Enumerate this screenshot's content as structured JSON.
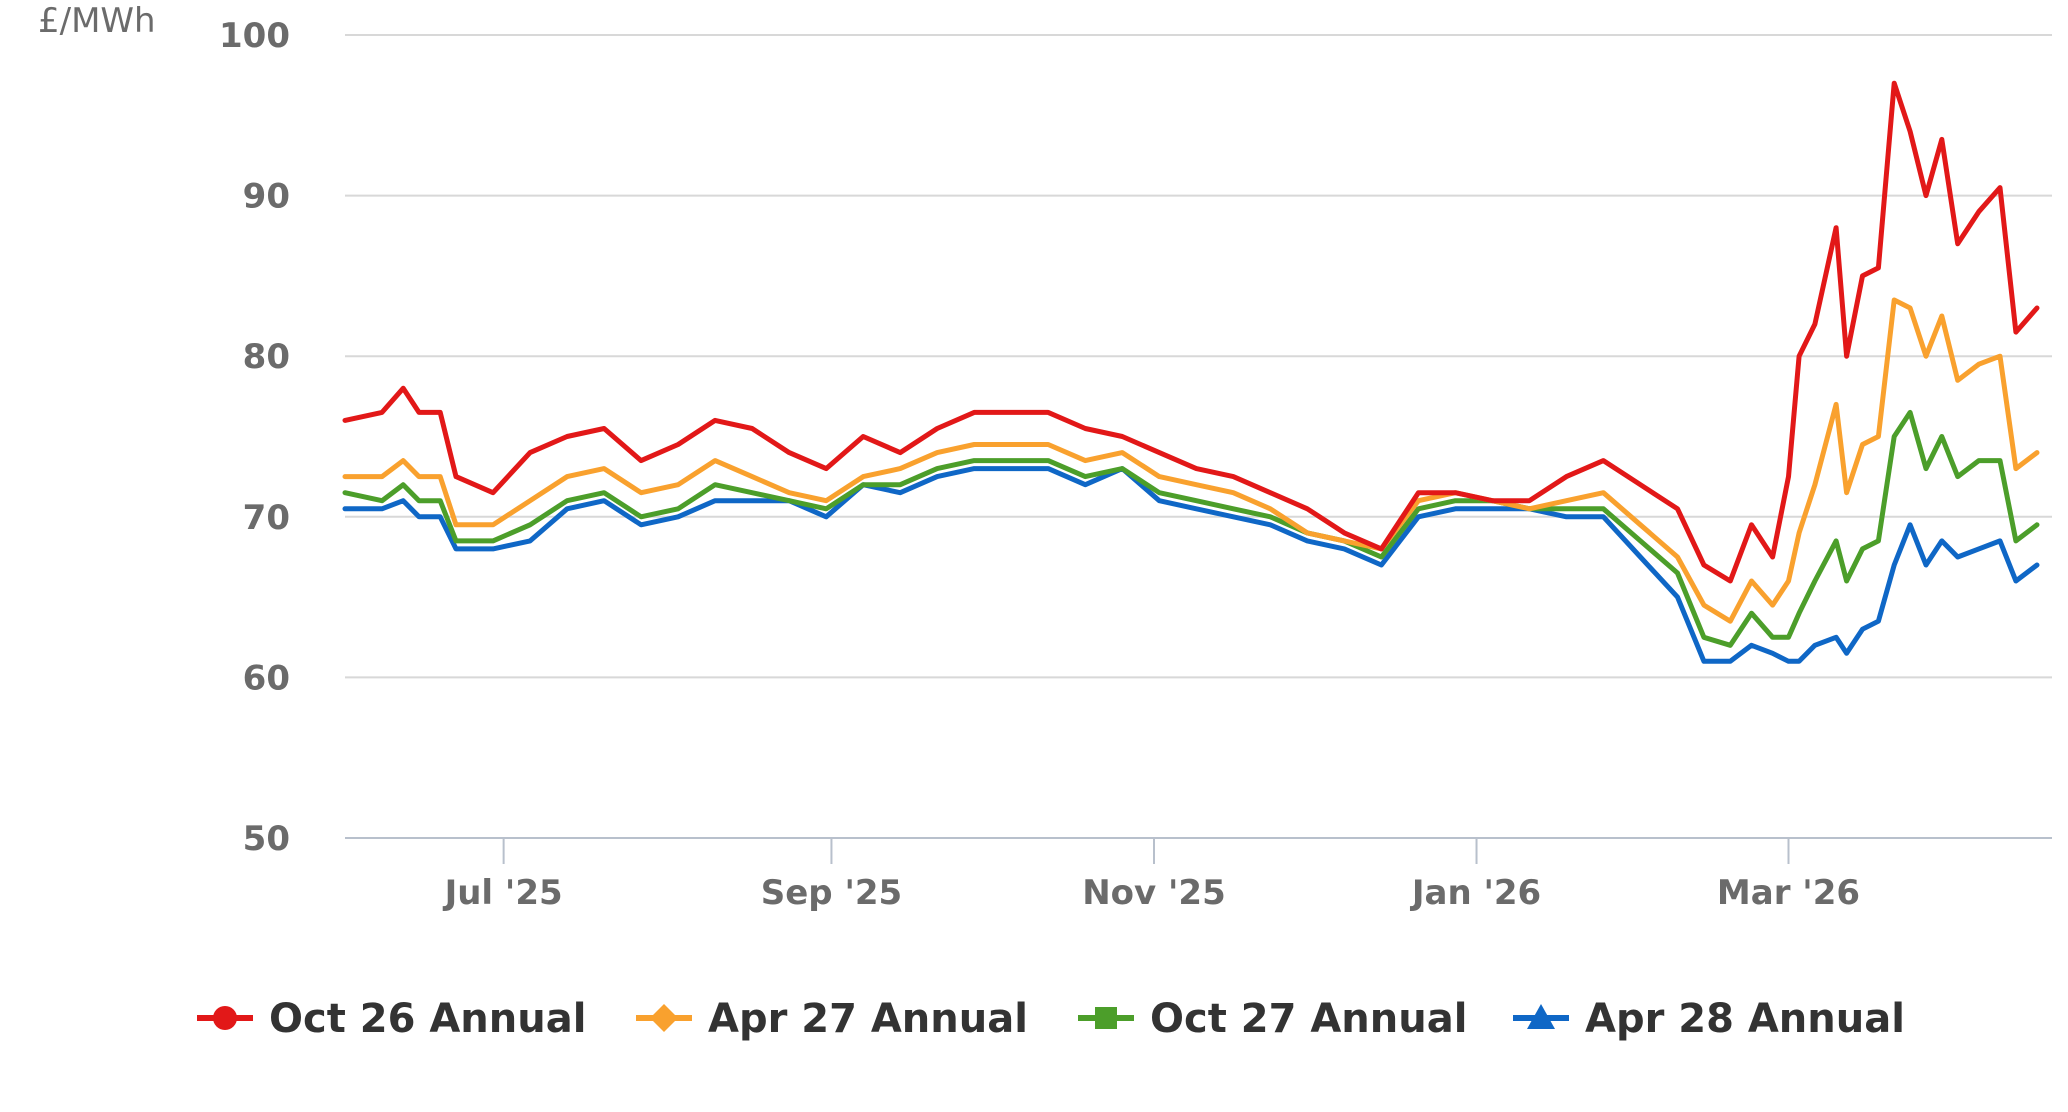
{
  "chart_data": {
    "type": "line",
    "ylabel": "£/MWh",
    "ylim": [
      50,
      100
    ],
    "yticks": [
      "100",
      "90",
      "80",
      "70",
      "60",
      "50"
    ],
    "x_range": [
      "2025-06-01",
      "2026-04-17"
    ],
    "xticks": [
      {
        "date": "2025-07-01",
        "label": "Jul '25"
      },
      {
        "date": "2025-09-01",
        "label": "Sep '25"
      },
      {
        "date": "2025-11-01",
        "label": "Nov '25"
      },
      {
        "date": "2026-01-01",
        "label": "Jan '26"
      },
      {
        "date": "2026-03-01",
        "label": "Mar '26"
      }
    ],
    "grid": true,
    "legend_position": "bottom",
    "series": [
      {
        "name": "Oct 26 Annual",
        "color": "#e21818",
        "marker": "circle",
        "points": [
          [
            "2025-06-01",
            76.0
          ],
          [
            "2025-06-08",
            76.5
          ],
          [
            "2025-06-12",
            78.0
          ],
          [
            "2025-06-15",
            76.5
          ],
          [
            "2025-06-19",
            76.5
          ],
          [
            "2025-06-22",
            72.5
          ],
          [
            "2025-06-29",
            71.5
          ],
          [
            "2025-07-06",
            74.0
          ],
          [
            "2025-07-13",
            75.0
          ],
          [
            "2025-07-20",
            75.5
          ],
          [
            "2025-07-27",
            73.5
          ],
          [
            "2025-08-03",
            74.5
          ],
          [
            "2025-08-10",
            76.0
          ],
          [
            "2025-08-17",
            75.5
          ],
          [
            "2025-08-24",
            74.0
          ],
          [
            "2025-08-31",
            73.0
          ],
          [
            "2025-09-07",
            75.0
          ],
          [
            "2025-09-14",
            74.0
          ],
          [
            "2025-09-21",
            75.5
          ],
          [
            "2025-09-28",
            76.5
          ],
          [
            "2025-10-05",
            76.5
          ],
          [
            "2025-10-12",
            76.5
          ],
          [
            "2025-10-19",
            75.5
          ],
          [
            "2025-10-26",
            75.0
          ],
          [
            "2025-11-02",
            74.0
          ],
          [
            "2025-11-09",
            73.0
          ],
          [
            "2025-11-16",
            72.5
          ],
          [
            "2025-11-23",
            71.5
          ],
          [
            "2025-11-30",
            70.5
          ],
          [
            "2025-12-07",
            69.0
          ],
          [
            "2025-12-14",
            68.0
          ],
          [
            "2025-12-21",
            71.5
          ],
          [
            "2025-12-28",
            71.5
          ],
          [
            "2026-01-04",
            71.0
          ],
          [
            "2026-01-11",
            71.0
          ],
          [
            "2026-01-18",
            72.5
          ],
          [
            "2026-01-25",
            73.5
          ],
          [
            "2026-02-01",
            72.0
          ],
          [
            "2026-02-08",
            70.5
          ],
          [
            "2026-02-13",
            67.0
          ],
          [
            "2026-02-18",
            66.0
          ],
          [
            "2026-02-22",
            69.5
          ],
          [
            "2026-02-26",
            67.5
          ],
          [
            "2026-03-01",
            72.5
          ],
          [
            "2026-03-03",
            80.0
          ],
          [
            "2026-03-06",
            82.0
          ],
          [
            "2026-03-10",
            88.0
          ],
          [
            "2026-03-12",
            80.0
          ],
          [
            "2026-03-15",
            85.0
          ],
          [
            "2026-03-18",
            85.5
          ],
          [
            "2026-03-21",
            97.0
          ],
          [
            "2026-03-24",
            94.0
          ],
          [
            "2026-03-27",
            90.0
          ],
          [
            "2026-03-30",
            93.5
          ],
          [
            "2026-04-02",
            87.0
          ],
          [
            "2026-04-06",
            89.0
          ],
          [
            "2026-04-10",
            90.5
          ],
          [
            "2026-04-13",
            81.5
          ],
          [
            "2026-04-17",
            83.0
          ]
        ]
      },
      {
        "name": "Apr 27 Annual",
        "color": "#f9a12e",
        "marker": "diamond",
        "points": [
          [
            "2025-06-01",
            72.5
          ],
          [
            "2025-06-08",
            72.5
          ],
          [
            "2025-06-12",
            73.5
          ],
          [
            "2025-06-15",
            72.5
          ],
          [
            "2025-06-19",
            72.5
          ],
          [
            "2025-06-22",
            69.5
          ],
          [
            "2025-06-29",
            69.5
          ],
          [
            "2025-07-06",
            71.0
          ],
          [
            "2025-07-13",
            72.5
          ],
          [
            "2025-07-20",
            73.0
          ],
          [
            "2025-07-27",
            71.5
          ],
          [
            "2025-08-03",
            72.0
          ],
          [
            "2025-08-10",
            73.5
          ],
          [
            "2025-08-17",
            72.5
          ],
          [
            "2025-08-24",
            71.5
          ],
          [
            "2025-08-31",
            71.0
          ],
          [
            "2025-09-07",
            72.5
          ],
          [
            "2025-09-14",
            73.0
          ],
          [
            "2025-09-21",
            74.0
          ],
          [
            "2025-09-28",
            74.5
          ],
          [
            "2025-10-05",
            74.5
          ],
          [
            "2025-10-12",
            74.5
          ],
          [
            "2025-10-19",
            73.5
          ],
          [
            "2025-10-26",
            74.0
          ],
          [
            "2025-11-02",
            72.5
          ],
          [
            "2025-11-09",
            72.0
          ],
          [
            "2025-11-16",
            71.5
          ],
          [
            "2025-11-23",
            70.5
          ],
          [
            "2025-11-30",
            69.0
          ],
          [
            "2025-12-07",
            68.5
          ],
          [
            "2025-12-14",
            68.0
          ],
          [
            "2025-12-21",
            71.0
          ],
          [
            "2025-12-28",
            71.5
          ],
          [
            "2026-01-04",
            71.0
          ],
          [
            "2026-01-11",
            70.5
          ],
          [
            "2026-01-18",
            71.0
          ],
          [
            "2026-01-25",
            71.5
          ],
          [
            "2026-02-01",
            69.5
          ],
          [
            "2026-02-08",
            67.5
          ],
          [
            "2026-02-13",
            64.5
          ],
          [
            "2026-02-18",
            63.5
          ],
          [
            "2026-02-22",
            66.0
          ],
          [
            "2026-02-26",
            64.5
          ],
          [
            "2026-03-01",
            66.0
          ],
          [
            "2026-03-03",
            69.0
          ],
          [
            "2026-03-06",
            72.0
          ],
          [
            "2026-03-10",
            77.0
          ],
          [
            "2026-03-12",
            71.5
          ],
          [
            "2026-03-15",
            74.5
          ],
          [
            "2026-03-18",
            75.0
          ],
          [
            "2026-03-21",
            83.5
          ],
          [
            "2026-03-24",
            83.0
          ],
          [
            "2026-03-27",
            80.0
          ],
          [
            "2026-03-30",
            82.5
          ],
          [
            "2026-04-02",
            78.5
          ],
          [
            "2026-04-06",
            79.5
          ],
          [
            "2026-04-10",
            80.0
          ],
          [
            "2026-04-13",
            73.0
          ],
          [
            "2026-04-17",
            74.0
          ]
        ]
      },
      {
        "name": "Oct 27 Annual",
        "color": "#4c9e2a",
        "marker": "square",
        "points": [
          [
            "2025-06-01",
            71.5
          ],
          [
            "2025-06-08",
            71.0
          ],
          [
            "2025-06-12",
            72.0
          ],
          [
            "2025-06-15",
            71.0
          ],
          [
            "2025-06-19",
            71.0
          ],
          [
            "2025-06-22",
            68.5
          ],
          [
            "2025-06-29",
            68.5
          ],
          [
            "2025-07-06",
            69.5
          ],
          [
            "2025-07-13",
            71.0
          ],
          [
            "2025-07-20",
            71.5
          ],
          [
            "2025-07-27",
            70.0
          ],
          [
            "2025-08-03",
            70.5
          ],
          [
            "2025-08-10",
            72.0
          ],
          [
            "2025-08-17",
            71.5
          ],
          [
            "2025-08-24",
            71.0
          ],
          [
            "2025-08-31",
            70.5
          ],
          [
            "2025-09-07",
            72.0
          ],
          [
            "2025-09-14",
            72.0
          ],
          [
            "2025-09-21",
            73.0
          ],
          [
            "2025-09-28",
            73.5
          ],
          [
            "2025-10-05",
            73.5
          ],
          [
            "2025-10-12",
            73.5
          ],
          [
            "2025-10-19",
            72.5
          ],
          [
            "2025-10-26",
            73.0
          ],
          [
            "2025-11-02",
            71.5
          ],
          [
            "2025-11-09",
            71.0
          ],
          [
            "2025-11-16",
            70.5
          ],
          [
            "2025-11-23",
            70.0
          ],
          [
            "2025-11-30",
            69.0
          ],
          [
            "2025-12-07",
            68.5
          ],
          [
            "2025-12-14",
            67.5
          ],
          [
            "2025-12-21",
            70.5
          ],
          [
            "2025-12-28",
            71.0
          ],
          [
            "2026-01-04",
            71.0
          ],
          [
            "2026-01-11",
            70.5
          ],
          [
            "2026-01-18",
            70.5
          ],
          [
            "2026-01-25",
            70.5
          ],
          [
            "2026-02-01",
            68.5
          ],
          [
            "2026-02-08",
            66.5
          ],
          [
            "2026-02-13",
            62.5
          ],
          [
            "2026-02-18",
            62.0
          ],
          [
            "2026-02-22",
            64.0
          ],
          [
            "2026-02-26",
            62.5
          ],
          [
            "2026-03-01",
            62.5
          ],
          [
            "2026-03-03",
            64.0
          ],
          [
            "2026-03-06",
            66.0
          ],
          [
            "2026-03-10",
            68.5
          ],
          [
            "2026-03-12",
            66.0
          ],
          [
            "2026-03-15",
            68.0
          ],
          [
            "2026-03-18",
            68.5
          ],
          [
            "2026-03-21",
            75.0
          ],
          [
            "2026-03-24",
            76.5
          ],
          [
            "2026-03-27",
            73.0
          ],
          [
            "2026-03-30",
            75.0
          ],
          [
            "2026-04-02",
            72.5
          ],
          [
            "2026-04-06",
            73.5
          ],
          [
            "2026-04-10",
            73.5
          ],
          [
            "2026-04-13",
            68.5
          ],
          [
            "2026-04-17",
            69.5
          ]
        ]
      },
      {
        "name": "Apr 28 Annual",
        "color": "#0f67c6",
        "marker": "triangle",
        "points": [
          [
            "2025-06-01",
            70.5
          ],
          [
            "2025-06-08",
            70.5
          ],
          [
            "2025-06-12",
            71.0
          ],
          [
            "2025-06-15",
            70.0
          ],
          [
            "2025-06-19",
            70.0
          ],
          [
            "2025-06-22",
            68.0
          ],
          [
            "2025-06-29",
            68.0
          ],
          [
            "2025-07-06",
            68.5
          ],
          [
            "2025-07-13",
            70.5
          ],
          [
            "2025-07-20",
            71.0
          ],
          [
            "2025-07-27",
            69.5
          ],
          [
            "2025-08-03",
            70.0
          ],
          [
            "2025-08-10",
            71.0
          ],
          [
            "2025-08-17",
            71.0
          ],
          [
            "2025-08-24",
            71.0
          ],
          [
            "2025-08-31",
            70.0
          ],
          [
            "2025-09-07",
            72.0
          ],
          [
            "2025-09-14",
            71.5
          ],
          [
            "2025-09-21",
            72.5
          ],
          [
            "2025-09-28",
            73.0
          ],
          [
            "2025-10-05",
            73.0
          ],
          [
            "2025-10-12",
            73.0
          ],
          [
            "2025-10-19",
            72.0
          ],
          [
            "2025-10-26",
            73.0
          ],
          [
            "2025-11-02",
            71.0
          ],
          [
            "2025-11-09",
            70.5
          ],
          [
            "2025-11-16",
            70.0
          ],
          [
            "2025-11-23",
            69.5
          ],
          [
            "2025-11-30",
            68.5
          ],
          [
            "2025-12-07",
            68.0
          ],
          [
            "2025-12-14",
            67.0
          ],
          [
            "2025-12-21",
            70.0
          ],
          [
            "2025-12-28",
            70.5
          ],
          [
            "2026-01-04",
            70.5
          ],
          [
            "2026-01-11",
            70.5
          ],
          [
            "2026-01-18",
            70.0
          ],
          [
            "2026-01-25",
            70.0
          ],
          [
            "2026-02-01",
            67.5
          ],
          [
            "2026-02-08",
            65.0
          ],
          [
            "2026-02-13",
            61.0
          ],
          [
            "2026-02-18",
            61.0
          ],
          [
            "2026-02-22",
            62.0
          ],
          [
            "2026-02-26",
            61.5
          ],
          [
            "2026-03-01",
            61.0
          ],
          [
            "2026-03-03",
            61.0
          ],
          [
            "2026-03-06",
            62.0
          ],
          [
            "2026-03-10",
            62.5
          ],
          [
            "2026-03-12",
            61.5
          ],
          [
            "2026-03-15",
            63.0
          ],
          [
            "2026-03-18",
            63.5
          ],
          [
            "2026-03-21",
            67.0
          ],
          [
            "2026-03-24",
            69.5
          ],
          [
            "2026-03-27",
            67.0
          ],
          [
            "2026-03-30",
            68.5
          ],
          [
            "2026-04-02",
            67.5
          ],
          [
            "2026-04-06",
            68.0
          ],
          [
            "2026-04-10",
            68.5
          ],
          [
            "2026-04-13",
            66.0
          ],
          [
            "2026-04-17",
            67.0
          ]
        ]
      }
    ]
  }
}
